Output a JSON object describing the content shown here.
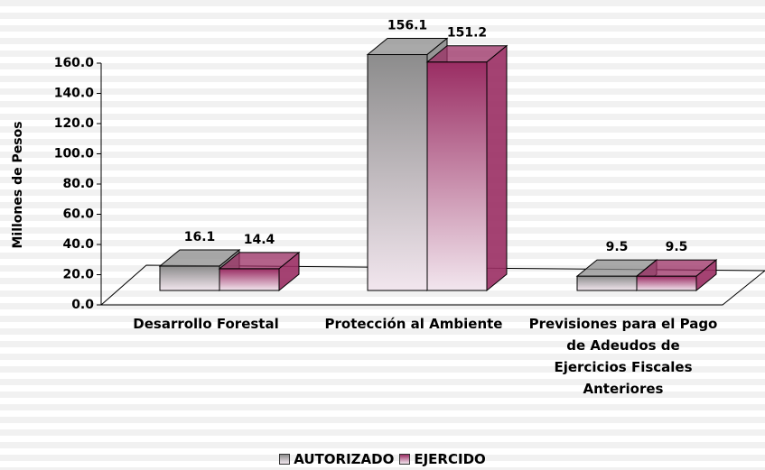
{
  "chart_data": {
    "type": "bar3d",
    "y_axis_label": "Millones de Pesos",
    "categories": [
      "Desarrollo Forestal",
      "Protección al Ambiente",
      "Previsiones para el Pago de Adeudos de Ejercicios Fiscales Anteriores"
    ],
    "series": [
      {
        "name": "AUTORIZADO",
        "color": "#8c8c8c",
        "values": [
          16.1,
          156.1,
          9.5
        ]
      },
      {
        "name": "EJERCIDO",
        "color": "#9a2d63",
        "values": [
          14.4,
          151.2,
          9.5
        ]
      }
    ],
    "ylim": [
      0,
      160
    ],
    "yticks": [
      {
        "value": 0,
        "label": "0.0"
      },
      {
        "value": 20,
        "label": "20.0"
      },
      {
        "value": 40,
        "label": "40.0"
      },
      {
        "value": 60,
        "label": "60.0"
      },
      {
        "value": 80,
        "label": "80.0"
      },
      {
        "value": 100,
        "label": "100.0"
      },
      {
        "value": 120,
        "label": "120.0"
      },
      {
        "value": 140,
        "label": "140.0"
      },
      {
        "value": 160,
        "label": "160.0"
      }
    ],
    "legend": "bottom"
  }
}
